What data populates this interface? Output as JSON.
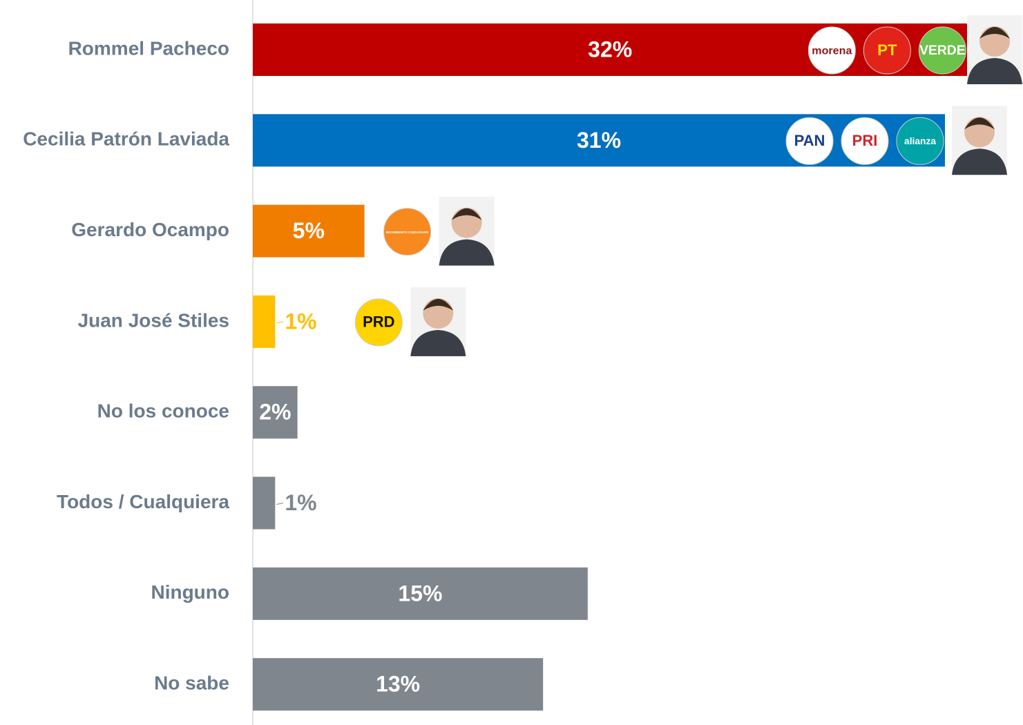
{
  "chart_data": {
    "type": "bar",
    "orientation": "horizontal",
    "categories": [
      "Rommel Pacheco",
      "Cecilia Patrón Laviada",
      "Gerardo Ocampo",
      "Juan José Stiles",
      "No los conoce",
      "Todos / Cualquiera",
      "Ninguno",
      "No sabe"
    ],
    "values": [
      32,
      31,
      5,
      1,
      2,
      1,
      15,
      13
    ],
    "value_labels": [
      "32%",
      "31%",
      "5%",
      "1%",
      "2%",
      "1%",
      "15%",
      "13%"
    ],
    "colors": [
      "#c00000",
      "#0070c0",
      "#f07d00",
      "#ffc000",
      "#7f868d",
      "#7f868d",
      "#7f868d",
      "#7f868d"
    ],
    "xlim": [
      0,
      34
    ],
    "party_logos": [
      [
        {
          "text": "morena",
          "color": "#ffffff",
          "text_color": "#8b1a1a"
        },
        {
          "text": "PT",
          "color": "#e2231a",
          "text_color": "#ffe600"
        },
        {
          "text": "VERDE",
          "color": "#6cc24a",
          "text_color": "#ffffff"
        }
      ],
      [
        {
          "text": "PAN",
          "color": "#ffffff",
          "text_color": "#1a3d8f"
        },
        {
          "text": "PRI",
          "color": "#ffffff",
          "text_color": "#d2232a"
        },
        {
          "text": "alianza",
          "color": "#00a3a6",
          "text_color": "#ffffff"
        }
      ],
      [
        {
          "text": "MOVIMIENTO CIUDADANO",
          "color": "#f7891f",
          "text_color": "#ffffff"
        }
      ],
      [
        {
          "text": "PRD",
          "color": "#ffd400",
          "text_color": "#111111"
        }
      ],
      [],
      [],
      [],
      []
    ]
  }
}
